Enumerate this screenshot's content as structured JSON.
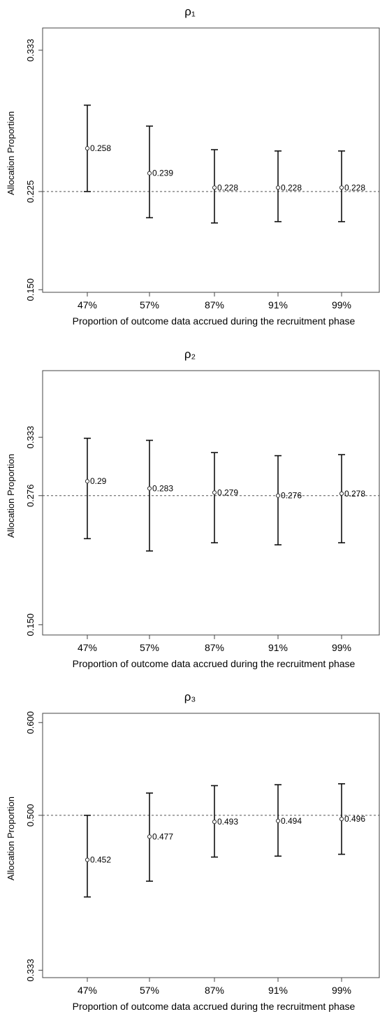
{
  "chart_data": [
    {
      "type": "errorbar",
      "title": "ρ₁",
      "xlabel": "Proportion of outcome data accrued during the recruitment phase",
      "ylabel": "Allocation Proportion",
      "categories": [
        "47%",
        "57%",
        "87%",
        "91%",
        "99%"
      ],
      "y_ticks": [
        "0.150",
        "0.225",
        "0.333"
      ],
      "ylim": [
        0.148,
        0.35
      ],
      "reference_line": 0.225,
      "series": [
        {
          "values": [
            0.258,
            0.239,
            0.228,
            0.228,
            0.228
          ],
          "labels": [
            "0.258",
            "0.239",
            "0.228",
            "0.228",
            "0.228"
          ],
          "lower": [
            0.225,
            0.205,
            0.201,
            0.202,
            0.202
          ],
          "upper": [
            0.291,
            0.275,
            0.257,
            0.256,
            0.256
          ]
        }
      ],
      "grid": false
    },
    {
      "type": "errorbar",
      "title": "ρ₂",
      "xlabel": "Proportion of outcome data accrued during the recruitment phase",
      "ylabel": "Allocation Proportion",
      "categories": [
        "47%",
        "57%",
        "87%",
        "91%",
        "99%"
      ],
      "y_ticks": [
        "0.150",
        "0.276",
        "0.333"
      ],
      "ylim": [
        0.14,
        0.398
      ],
      "reference_line": 0.276,
      "series": [
        {
          "values": [
            0.29,
            0.283,
            0.279,
            0.276,
            0.278
          ],
          "labels": [
            "0.29",
            "0.283",
            "0.279",
            "0.276",
            "0.278"
          ],
          "lower": [
            0.234,
            0.222,
            0.23,
            0.228,
            0.23
          ],
          "upper": [
            0.332,
            0.33,
            0.318,
            0.315,
            0.316
          ]
        }
      ],
      "grid": false
    },
    {
      "type": "errorbar",
      "title": "ρ₃",
      "xlabel": "Proportion of outcome data accrued during the recruitment phase",
      "ylabel": "Allocation Proportion",
      "categories": [
        "47%",
        "57%",
        "87%",
        "91%",
        "99%"
      ],
      "y_ticks": [
        "0.333",
        "0.500",
        "0.600"
      ],
      "ylim": [
        0.325,
        0.61
      ],
      "reference_line": 0.5,
      "series": [
        {
          "values": [
            0.452,
            0.477,
            0.493,
            0.494,
            0.496
          ],
          "labels": [
            "0.452",
            "0.477",
            "0.493",
            "0.494",
            "0.496"
          ],
          "lower": [
            0.412,
            0.429,
            0.455,
            0.456,
            0.458
          ],
          "upper": [
            0.5,
            0.524,
            0.532,
            0.533,
            0.534
          ]
        }
      ],
      "grid": false
    }
  ]
}
